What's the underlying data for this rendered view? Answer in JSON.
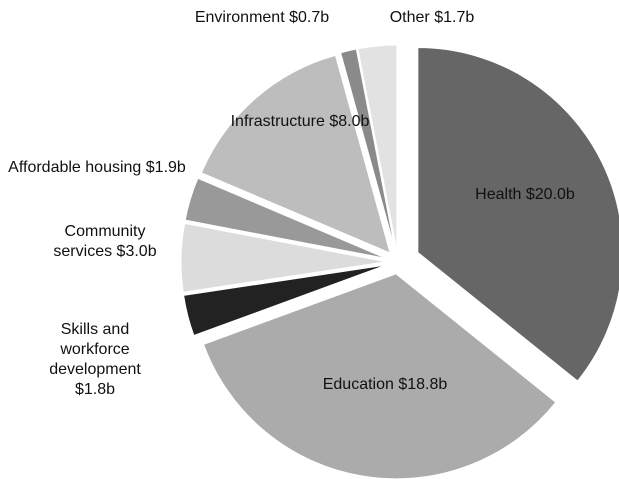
{
  "chart_data": {
    "type": "pie",
    "categories": [
      "Health",
      "Education",
      "Skills and workforce development",
      "Community services",
      "Affordable housing",
      "Infrastructure",
      "Environment",
      "Other"
    ],
    "values": [
      20.0,
      18.8,
      1.8,
      3.0,
      1.9,
      8.0,
      0.7,
      1.7
    ],
    "value_labels": [
      "$20.0b",
      "$18.8b",
      "$1.8b",
      "$3.0b",
      "$1.9b",
      "$8.0b",
      "$0.7b",
      "$1.7b"
    ],
    "colors": [
      "#666666",
      "#ababab",
      "#222222",
      "#dcdcdc",
      "#999999",
      "#bdbdbd",
      "#8a8a8a",
      "#e2e2e2"
    ]
  }
}
